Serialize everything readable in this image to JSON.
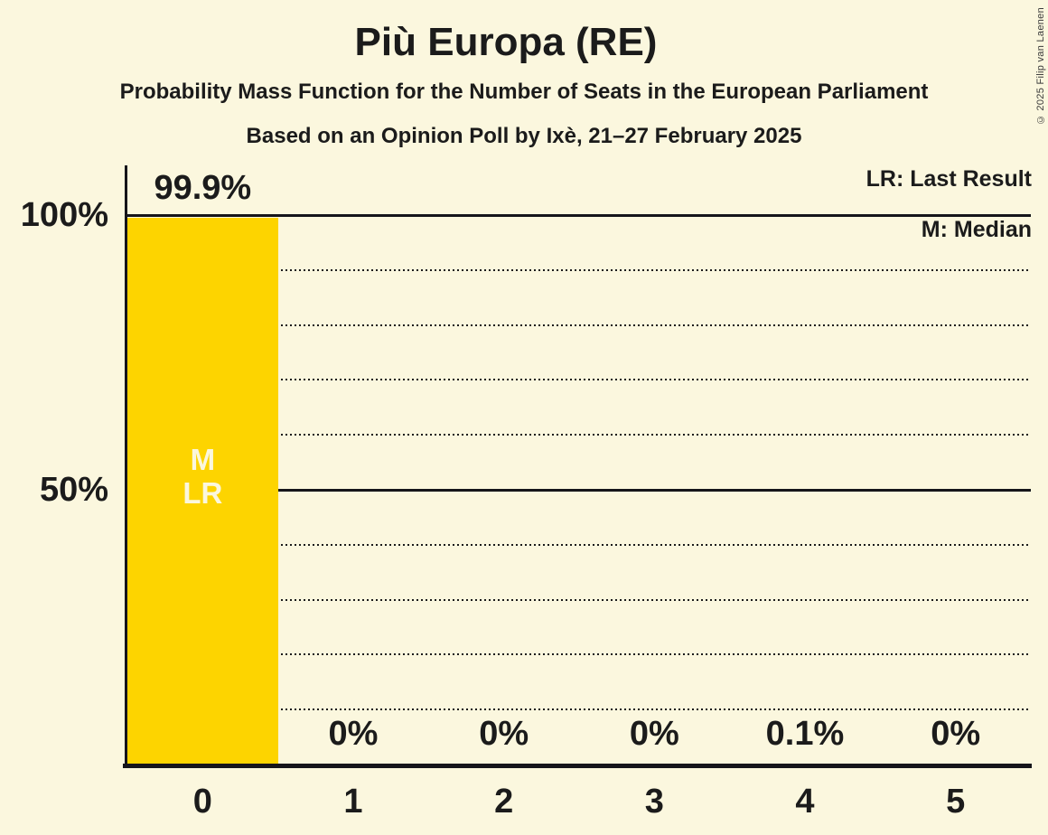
{
  "header": {
    "title": "Più Europa (RE)",
    "subtitle": "Probability Mass Function for the Number of Seats in the European Parliament",
    "poll_line": "Based on an Opinion Poll by Ixè, 21–27 February 2025",
    "copyright": "© 2025 Filip van Laenen"
  },
  "legend": {
    "last_result": "LR: Last Result",
    "median": "M: Median"
  },
  "chart_data": {
    "type": "bar",
    "title": "Più Europa (RE)",
    "xlabel": "",
    "ylabel": "",
    "categories": [
      "0",
      "1",
      "2",
      "3",
      "4",
      "5"
    ],
    "values": [
      99.9,
      0,
      0,
      0,
      0.1,
      0
    ],
    "value_labels": [
      "99.9%",
      "0%",
      "0%",
      "0%",
      "0.1%",
      "0%"
    ],
    "ylim": [
      0,
      100
    ],
    "y_ticks": [
      {
        "level": 100,
        "label": "100%"
      },
      {
        "level": 50,
        "label": "50%"
      }
    ],
    "gridlines": {
      "solid_levels": [
        50,
        100
      ],
      "dotted_levels": [
        10,
        20,
        30,
        40,
        60,
        70,
        80,
        90
      ]
    },
    "annotations": [
      {
        "bar_index": 0,
        "lines": [
          "M",
          "LR"
        ]
      }
    ],
    "legend_entries": [
      "LR: Last Result",
      "M: Median"
    ],
    "legend_position": "top-right",
    "bar_color": "#FDD400",
    "background_color": "#FBF7DE",
    "text_color": "#1B1B1B"
  }
}
